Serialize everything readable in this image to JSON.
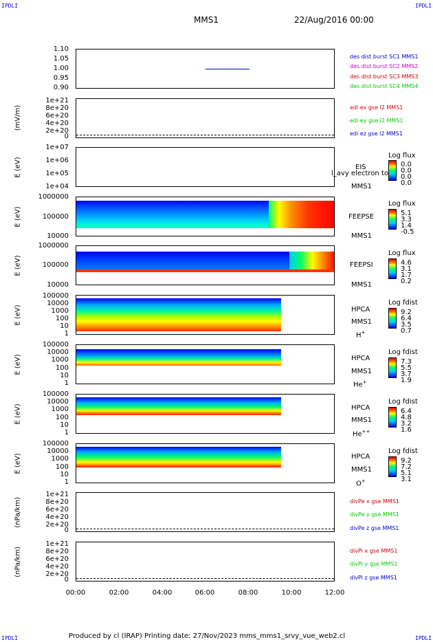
{
  "corner": {
    "label": "IPDLI"
  },
  "header": {
    "mission": "MMS1",
    "date": "22/Aug/2016 00:00"
  },
  "xaxis": {
    "ticks": [
      "00:00",
      "02:00",
      "04:00",
      "06:00",
      "08:00",
      "10:00",
      "12:00"
    ]
  },
  "panels": {
    "p1": {
      "ticks": [
        "1.10",
        "1.05",
        "1.00",
        "0.95",
        "0.90"
      ],
      "legend": [
        {
          "text": "des dist burst SC1 MMS1",
          "color": "#0000cc"
        },
        {
          "text": "des dist burst SC2 MMS2",
          "color": "#cc00cc"
        },
        {
          "text": "des dist burst SC3 MMS3",
          "color": "#cc0000"
        },
        {
          "text": "des dist burst SC4 MMS4",
          "color": "#00cc00"
        }
      ]
    },
    "p2": {
      "ylabel": "(mV/m)",
      "ticks": [
        "1e+21",
        "8e+20",
        "6e+20",
        "4e+20",
        "2e+20",
        "0"
      ],
      "legend": [
        {
          "text": "edi ex gse l2 MMS1",
          "color": "#cc0000"
        },
        {
          "text": "edi ey gse l2 MMS1",
          "color": "#00cc00"
        },
        {
          "text": "edi ez gse l2 MMS1",
          "color": "#0000cc"
        }
      ]
    },
    "p3": {
      "ylabel": "E (eV)",
      "ticks": [
        "1e+07",
        "1e+06",
        "1e+05",
        "1e+04"
      ],
      "label1": "EIS",
      "label2": "MMS1",
      "overlay": "l_avy electron to",
      "cbtitle": "Log flux",
      "cbticks": [
        "0.0",
        "0.0",
        "0.0",
        "0.0"
      ]
    },
    "p4": {
      "ylabel": "E (eV)",
      "ticks": [
        "1000000",
        "100000",
        "10000"
      ],
      "label1": "FEEPSE",
      "label2": "MMS1",
      "cbtitle": "Log flux",
      "cbticks": [
        "5.1",
        "3.3",
        "1.4",
        "-0.5"
      ]
    },
    "p5": {
      "ylabel": "E (eV)",
      "ticks": [
        "1000000",
        "100000",
        "10000"
      ],
      "label1": "FEEPSI",
      "label2": "MMS1",
      "cbtitle": "Log flux",
      "cbticks": [
        "4.6",
        "3.1",
        "1.7",
        "0.2"
      ]
    },
    "p6": {
      "ylabel": "E (eV)",
      "ticks": [
        "100000",
        "10000",
        "1000",
        "100",
        "10",
        "1"
      ],
      "label1": "HPCA",
      "label2": "MMS1",
      "species": "H",
      "charge": "+",
      "cbtitle": "Log fdist",
      "cbticks": [
        "9.2",
        "6.4",
        "3.5",
        "0.7"
      ]
    },
    "p7": {
      "ylabel": "E (eV)",
      "ticks": [
        "100000",
        "10000",
        "1000",
        "100",
        "10",
        "1"
      ],
      "label1": "HPCA",
      "label2": "MMS1",
      "species": "He",
      "charge": "+",
      "cbtitle": "Log fdist",
      "cbticks": [
        "7.3",
        "5.5",
        "3.7",
        "1.9"
      ]
    },
    "p8": {
      "ylabel": "E (eV)",
      "ticks": [
        "100000",
        "10000",
        "1000",
        "100",
        "10",
        "1"
      ],
      "label1": "HPCA",
      "label2": "MMS1",
      "species": "He",
      "charge": "++",
      "cbtitle": "Log fdist",
      "cbticks": [
        "6.4",
        "4.8",
        "3.2",
        "1.6"
      ]
    },
    "p9": {
      "ylabel": "E (eV)",
      "ticks": [
        "100000",
        "10000",
        "1000",
        "100",
        "10",
        "1"
      ],
      "label1": "HPCA",
      "label2": "MMS1",
      "species": "O",
      "charge": "+",
      "cbtitle": "Log fdist",
      "cbticks": [
        "9.2",
        "7.2",
        "5.1",
        "3.1"
      ]
    },
    "p10": {
      "ylabel": "(nPa/km)",
      "ticks": [
        "1e+21",
        "8e+20",
        "6e+20",
        "4e+20",
        "2e+20",
        "0"
      ],
      "legend": [
        {
          "text": "divPe x gse MMS1",
          "color": "#cc0000"
        },
        {
          "text": "divPe y gse MMS1",
          "color": "#00cc00"
        },
        {
          "text": "divPe z gse MMS1",
          "color": "#0000cc"
        }
      ]
    },
    "p11": {
      "ylabel": "(nPa/km)",
      "ticks": [
        "1e+21",
        "8e+20",
        "6e+20",
        "4e+20",
        "2e+20",
        "0"
      ],
      "legend": [
        {
          "text": "divPi x gse MMS1",
          "color": "#cc0000"
        },
        {
          "text": "divPi y gse MMS1",
          "color": "#00cc00"
        },
        {
          "text": "divPi z gse MMS1",
          "color": "#0000cc"
        }
      ]
    }
  },
  "footer": {
    "text": "Produced by cl (IRAP)   Printing date: 27/Nov/2023   mms_mms1_srvy_vue_web2.cl"
  },
  "chart_data": {
    "type": "line",
    "title": "MMS1",
    "x_range": [
      "00:00",
      "12:00"
    ],
    "series": [
      {
        "name": "des dist burst SC1 MMS1",
        "x": [
          "06:00",
          "08:00"
        ],
        "values": [
          1.0,
          1.0
        ]
      }
    ],
    "ylim": [
      0.9,
      1.1
    ]
  }
}
